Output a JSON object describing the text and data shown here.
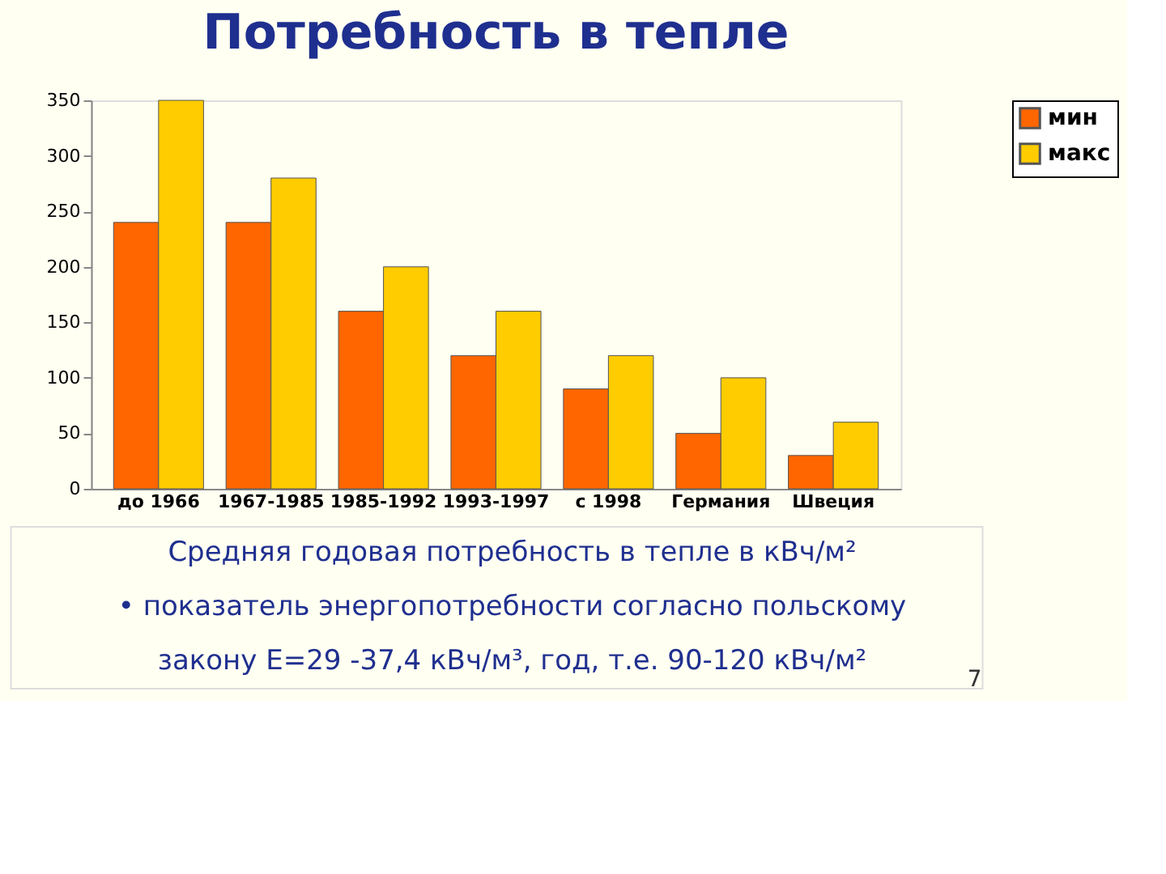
{
  "chart_data": {
    "type": "bar",
    "title": "Потребность в тепле",
    "categories": [
      "до 1966",
      "1967-1985",
      "1985-1992",
      "1993-1997",
      "с 1998",
      "Германия",
      "Швеция"
    ],
    "series": [
      {
        "name": "мин",
        "color": "#ff6600",
        "values": [
          240,
          240,
          160,
          120,
          90,
          50,
          30
        ]
      },
      {
        "name": "макс",
        "color": "#ffcc00",
        "values": [
          350,
          280,
          200,
          160,
          120,
          100,
          60
        ]
      }
    ],
    "ylim": [
      0,
      350
    ],
    "yticks": [
      0,
      50,
      100,
      150,
      200,
      250,
      300,
      350
    ],
    "grid": false,
    "legend": "top right",
    "annotations": [
      "Средняя годовая потребность в тепле в кВч/м²",
      "• показатель энергопотребности согласно польскому",
      "закону E=29 -37,4 кВч/м³, год, т.е. 90-120 кВч/м²",
      "7"
    ]
  }
}
